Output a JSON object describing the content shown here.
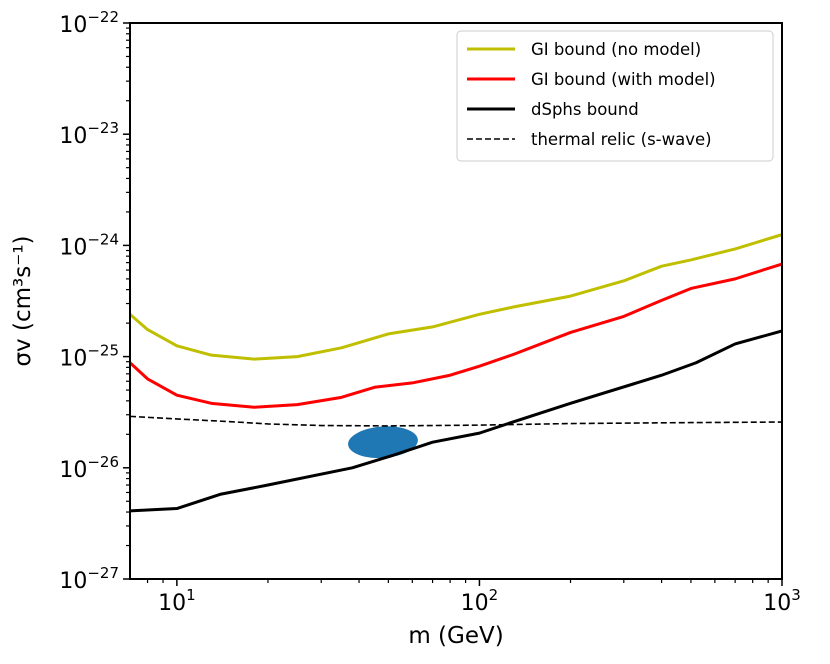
{
  "chart_data": {
    "type": "line",
    "title": "",
    "xlabel": "m (GeV)",
    "ylabel": "σv (cm³s⁻¹)",
    "xscale": "log",
    "yscale": "log",
    "xlim": [
      7,
      1000
    ],
    "ylim": [
      1e-27,
      1e-22
    ],
    "grid": false,
    "legend_position": "top-right",
    "x_tick_labels": [
      {
        "value": 10,
        "base": "10",
        "exp": "1"
      },
      {
        "value": 100,
        "base": "10",
        "exp": "2"
      },
      {
        "value": 1000,
        "base": "10",
        "exp": "3"
      }
    ],
    "y_tick_labels": [
      {
        "value": 1e-27,
        "base": "10",
        "exp": "−27"
      },
      {
        "value": 1e-26,
        "base": "10",
        "exp": "−26"
      },
      {
        "value": 1e-25,
        "base": "10",
        "exp": "−25"
      },
      {
        "value": 1e-24,
        "base": "10",
        "exp": "−24"
      },
      {
        "value": 1e-23,
        "base": "10",
        "exp": "−23"
      },
      {
        "value": 1e-22,
        "base": "10",
        "exp": "−22"
      }
    ],
    "series": [
      {
        "name": "GI bound (no model)",
        "color": "#bfbf00",
        "style": "solid",
        "x": [
          7,
          8,
          10,
          13,
          18,
          25,
          35,
          50,
          70,
          100,
          130,
          200,
          300,
          400,
          500,
          700,
          1000
        ],
        "y": [
          2.4e-25,
          1.75e-25,
          1.25e-25,
          1.03e-25,
          9.5e-26,
          1e-25,
          1.2e-25,
          1.6e-25,
          1.85e-25,
          2.4e-25,
          2.8e-25,
          3.5e-25,
          4.8e-25,
          6.5e-25,
          7.4e-25,
          9.3e-25,
          1.25e-24
        ]
      },
      {
        "name": "GI bound (with model)",
        "color": "#ff0000",
        "style": "solid",
        "x": [
          7,
          8,
          10,
          13,
          18,
          25,
          35,
          45,
          60,
          80,
          100,
          130,
          200,
          300,
          400,
          500,
          700,
          1000
        ],
        "y": [
          8.8e-26,
          6.3e-26,
          4.5e-26,
          3.8e-26,
          3.5e-26,
          3.7e-26,
          4.3e-26,
          5.3e-26,
          5.8e-26,
          6.8e-26,
          8.2e-26,
          1.05e-25,
          1.65e-25,
          2.3e-25,
          3.2e-25,
          4.1e-25,
          5e-25,
          6.8e-25
        ]
      },
      {
        "name": "dSphs bound",
        "color": "#000000",
        "style": "solid",
        "x": [
          7,
          10,
          14,
          20,
          38,
          52,
          70,
          100,
          130,
          200,
          400,
          520,
          700,
          1000
        ],
        "y": [
          4.1e-27,
          4.3e-27,
          5.8e-27,
          7e-27,
          1e-26,
          1.3e-26,
          1.7e-26,
          2.05e-26,
          2.6e-26,
          3.8e-26,
          6.8e-26,
          8.8e-26,
          1.3e-25,
          1.7e-25
        ]
      },
      {
        "name": "thermal relic (s-wave)",
        "color": "#000000",
        "style": "dashed",
        "x": [
          7,
          10,
          15,
          20,
          30,
          50,
          100,
          200,
          500,
          1000
        ],
        "y": [
          2.9e-26,
          2.75e-26,
          2.6e-26,
          2.48e-26,
          2.4e-26,
          2.38e-26,
          2.42e-26,
          2.5e-26,
          2.55e-26,
          2.58e-26
        ]
      }
    ],
    "region": {
      "name": "best-fit region",
      "color": "#1f77b4",
      "center_x": 48,
      "center_y": 1.7e-26,
      "x_range": [
        37,
        63
      ],
      "y_range": [
        1.2e-26,
        2.3e-26
      ]
    }
  }
}
